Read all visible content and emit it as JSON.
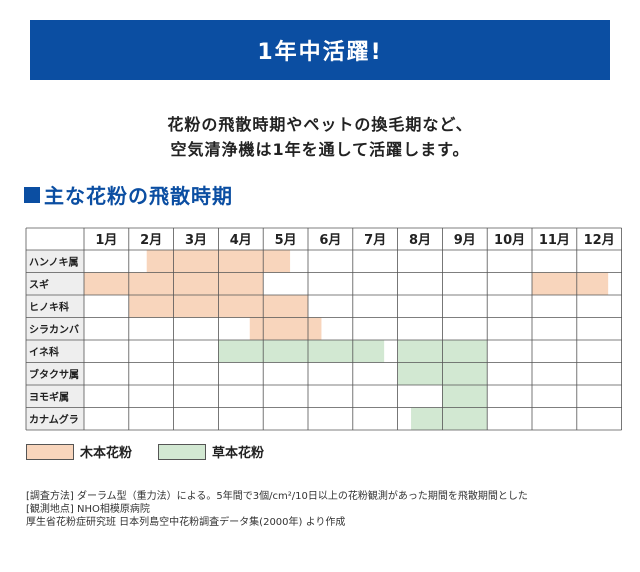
{
  "banner": {
    "title": "1年中活躍!"
  },
  "lead": {
    "line1": "花粉の飛散時期やペットの換毛期など、",
    "line2": "空気清浄機は1年を通して活躍します。"
  },
  "section": {
    "title": "主な花粉の飛散時期"
  },
  "colors": {
    "wood": "#f8d5bc",
    "grass": "#d2e8d2",
    "grid": "#555555",
    "label_bg": "#eeeeee",
    "accent": "#0b4ea2"
  },
  "chart_data": {
    "type": "table",
    "columns": [
      "1月",
      "2月",
      "3月",
      "4月",
      "5月",
      "6月",
      "7月",
      "8月",
      "9月",
      "10月",
      "11月",
      "12月"
    ],
    "rows": [
      {
        "label": "ハンノキ属",
        "kind": "wood",
        "ranges": [
          [
            2.4,
            5.6
          ]
        ]
      },
      {
        "label": "スギ",
        "kind": "wood",
        "ranges": [
          [
            1.0,
            5.0
          ],
          [
            11.0,
            12.7
          ]
        ]
      },
      {
        "label": "ヒノキ科",
        "kind": "wood",
        "ranges": [
          [
            2.0,
            6.0
          ]
        ]
      },
      {
        "label": "シラカンバ",
        "kind": "wood",
        "ranges": [
          [
            4.7,
            6.3
          ]
        ]
      },
      {
        "label": "イネ科",
        "kind": "grass",
        "ranges": [
          [
            4.0,
            7.7
          ],
          [
            8.0,
            10.0
          ]
        ]
      },
      {
        "label": "ブタクサ属",
        "kind": "grass",
        "ranges": [
          [
            8.0,
            10.0
          ]
        ]
      },
      {
        "label": "ヨモギ属",
        "kind": "grass",
        "ranges": [
          [
            9.0,
            10.0
          ]
        ]
      },
      {
        "label": "カナムグラ",
        "kind": "grass",
        "ranges": [
          [
            8.3,
            10.0
          ]
        ]
      }
    ]
  },
  "legend": {
    "wood": "木本花粉",
    "grass": "草本花粉"
  },
  "notes": {
    "line1": "[調査方法] ダーラム型（重力法）による。5年間で3個/cm²/10日以上の花粉観測があった期間を飛散期間とした",
    "line2": "[観測地点] NHO相模原病院",
    "line3": "厚生省花粉症研究班 日本列島空中花粉調査データ集(2000年) より作成"
  }
}
